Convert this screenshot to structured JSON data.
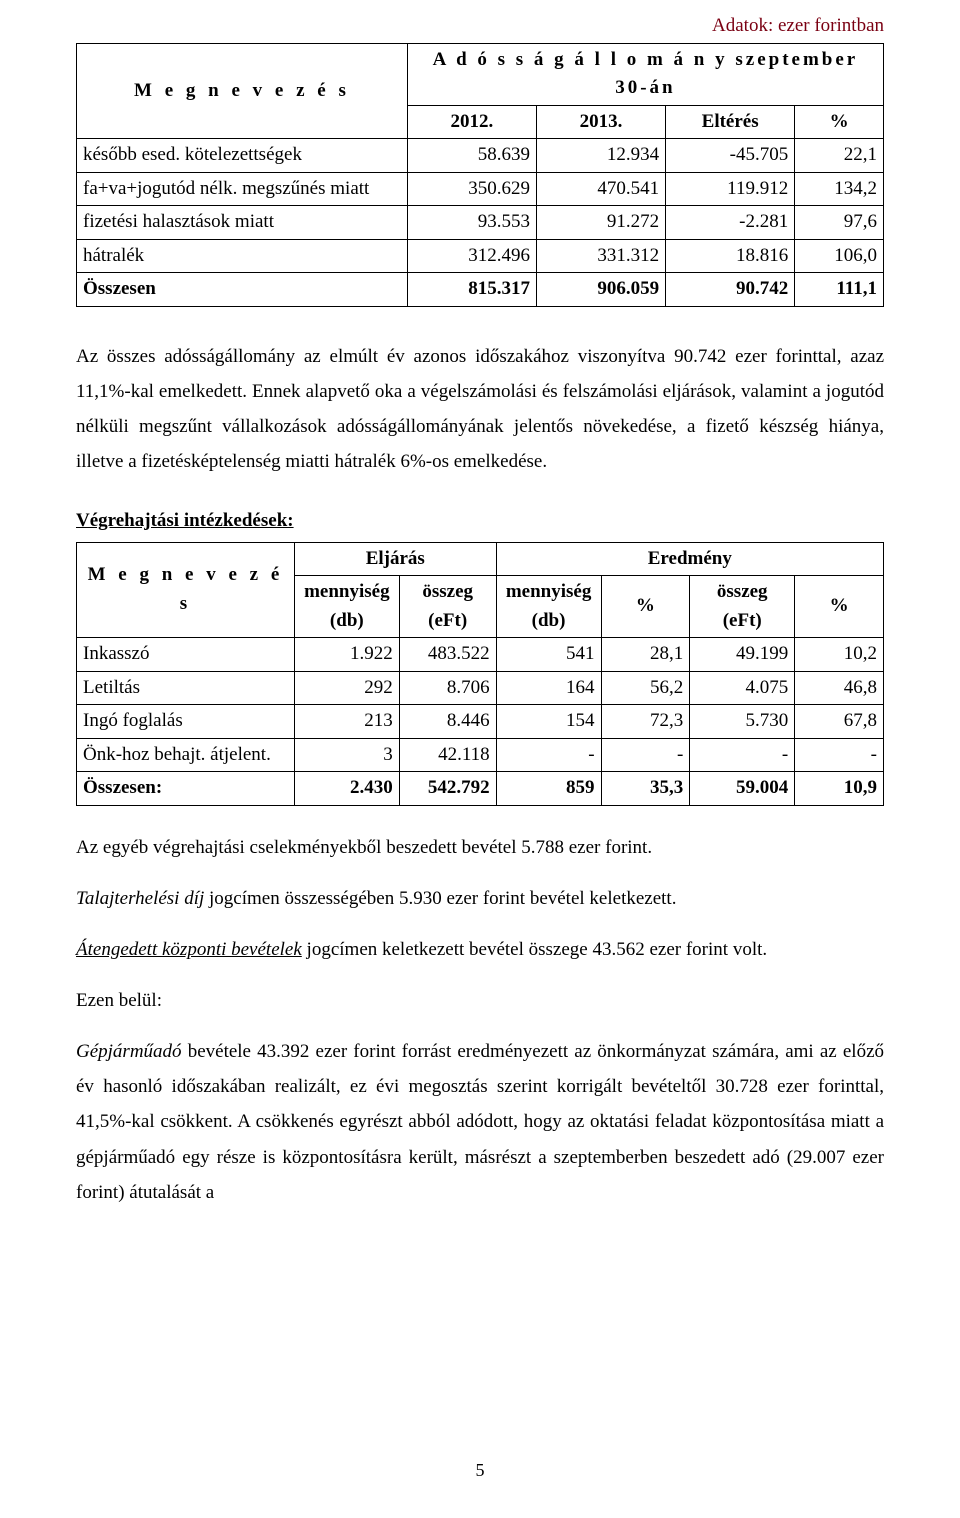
{
  "topNote": "Adatok: ezer forintban",
  "table1": {
    "megnevezes": "M e g n e v e z é s",
    "headerTop": "A d ó s s á g á l l o m á n y  szeptember 30-án",
    "h2012": "2012.",
    "h2013": "2013.",
    "hElteres": "Eltérés",
    "hPct": "%",
    "rows": [
      {
        "label": "később esed. kötelezettségek",
        "y12": "58.639",
        "y13": "12.934",
        "d": "-45.705",
        "p": "22,1"
      },
      {
        "label": "fa+va+jogutód nélk. megszűnés miatt",
        "y12": "350.629",
        "y13": "470.541",
        "d": "119.912",
        "p": "134,2"
      },
      {
        "label": "fizetési halasztások miatt",
        "y12": "93.553",
        "y13": "91.272",
        "d": "-2.281",
        "p": "97,6"
      },
      {
        "label": "hátralék",
        "y12": "312.496",
        "y13": "331.312",
        "d": "18.816",
        "p": "106,0"
      }
    ],
    "total": {
      "label": "Összesen",
      "y12": "815.317",
      "y13": "906.059",
      "d": "90.742",
      "p": "111,1"
    }
  },
  "para1": "Az összes adósságállomány az elmúlt év azonos időszakához viszonyítva 90.742 ezer forinttal, azaz 11,1%-kal emelkedett. Ennek alapvető oka a végelszámolási és felszámolási eljárások, valamint a jogutód nélküli megszűnt vállalkozások adósságállományának jelentős növekedése, a fizető készség hiánya, illetve a fizetésképtelenség miatti hátralék 6%-os emelkedése.",
  "sectionTitle": "Végrehajtási intézkedések:",
  "table2": {
    "megnevezes": "M e g n e v e z é s",
    "hEljaras": "Eljárás",
    "hEredmeny": "Eredmény",
    "hMennyDb": "mennyiség (db)",
    "hOsszegEft": "összeg (eFt)",
    "hPct": "%",
    "rows": [
      {
        "label": "Inkasszó",
        "mdb": "1.922",
        "eft": "483.522",
        "rmdb": "541",
        "rpct": "28,1",
        "reft": "49.199",
        "rpct2": "10,2"
      },
      {
        "label": "Letiltás",
        "mdb": "292",
        "eft": "8.706",
        "rmdb": "164",
        "rpct": "56,2",
        "reft": "4.075",
        "rpct2": "46,8"
      },
      {
        "label": "Ingó foglalás",
        "mdb": "213",
        "eft": "8.446",
        "rmdb": "154",
        "rpct": "72,3",
        "reft": "5.730",
        "rpct2": "67,8"
      },
      {
        "label": "Önk-hoz behajt. átjelent.",
        "mdb": "3",
        "eft": "42.118",
        "rmdb": "-",
        "rpct": "-",
        "reft": "-",
        "rpct2": "-"
      }
    ],
    "total": {
      "label": "Összesen:",
      "mdb": "2.430",
      "eft": "542.792",
      "rmdb": "859",
      "rpct": "35,3",
      "reft": "59.004",
      "rpct2": "10,9"
    }
  },
  "paraAfterT2": "Az egyéb végrehajtási cselekményekből beszedett bevétel 5.788 ezer forint.",
  "talajLine": {
    "italic": "Talajterhelési díj",
    "rest": " jogcímen összességében 5.930 ezer forint bevétel keletkezett."
  },
  "atengedett": {
    "lead": "Átengedett központi bevételek",
    "rest": " jogcímen keletkezett bevétel összege 43.562 ezer forint volt."
  },
  "ezenBelul": "Ezen belül:",
  "gepjarmu": {
    "lead": "Gépjárműadó",
    "rest": " bevétele 43.392 ezer forint forrást eredményezett az önkormányzat számára, ami az előző év hasonló időszakában realizált, ez évi megosztás szerint korrigált bevételtől 30.728 ezer forinttal, 41,5%-kal csökkent. A csökkenés egyrészt abból adódott, hogy az oktatási feladat központosítása miatt a gépjárműadó egy része is központosításra került, másrészt a szeptemberben beszedett adó (29.007 ezer forint) átutalását a"
  },
  "pageNumber": "5"
}
